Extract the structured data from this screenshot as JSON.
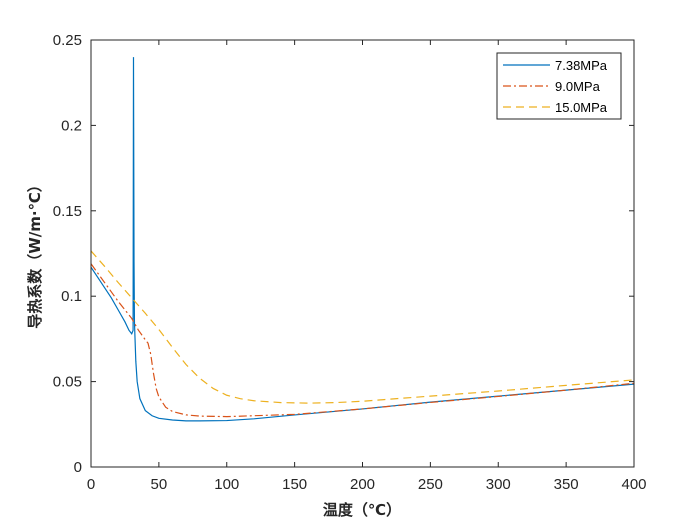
{
  "chart_data": {
    "type": "line",
    "xlabel": "温度（℃）",
    "ylabel": "导热系数（W/m·℃）",
    "xlim": [
      0,
      400
    ],
    "ylim": [
      0,
      0.25
    ],
    "xticks": [
      "0",
      "50",
      "100",
      "150",
      "200",
      "250",
      "300",
      "350",
      "400"
    ],
    "yticks": [
      "0",
      "0.05",
      "0.1",
      "0.15",
      "0.2",
      "0.25"
    ],
    "grid": false,
    "legend_position": "top-right",
    "series": [
      {
        "name": "7.38MPa",
        "color": "#0072BD",
        "dash": "solid",
        "points": [
          [
            0,
            0.117
          ],
          [
            5,
            0.111
          ],
          [
            10,
            0.105
          ],
          [
            15,
            0.099
          ],
          [
            20,
            0.092
          ],
          [
            25,
            0.085
          ],
          [
            28,
            0.08
          ],
          [
            30,
            0.078
          ],
          [
            31,
            0.08
          ],
          [
            31.3,
            0.24
          ],
          [
            31.7,
            0.12
          ],
          [
            32,
            0.085
          ],
          [
            33,
            0.062
          ],
          [
            34,
            0.05
          ],
          [
            36,
            0.04
          ],
          [
            40,
            0.033
          ],
          [
            45,
            0.03
          ],
          [
            50,
            0.0285
          ],
          [
            60,
            0.0275
          ],
          [
            70,
            0.027
          ],
          [
            80,
            0.027
          ],
          [
            100,
            0.0272
          ],
          [
            120,
            0.0282
          ],
          [
            150,
            0.0305
          ],
          [
            200,
            0.034
          ],
          [
            250,
            0.038
          ],
          [
            300,
            0.0415
          ],
          [
            350,
            0.045
          ],
          [
            400,
            0.0485
          ]
        ]
      },
      {
        "name": "9.0MPa",
        "color": "#D95319",
        "dash": "dashdot",
        "points": [
          [
            0,
            0.119
          ],
          [
            10,
            0.108
          ],
          [
            20,
            0.097
          ],
          [
            30,
            0.087
          ],
          [
            35,
            0.08
          ],
          [
            40,
            0.0745
          ],
          [
            42,
            0.0725
          ],
          [
            44,
            0.066
          ],
          [
            46,
            0.055
          ],
          [
            48,
            0.046
          ],
          [
            50,
            0.041
          ],
          [
            55,
            0.035
          ],
          [
            60,
            0.0325
          ],
          [
            70,
            0.0305
          ],
          [
            80,
            0.0298
          ],
          [
            100,
            0.0295
          ],
          [
            150,
            0.0308
          ],
          [
            200,
            0.034
          ],
          [
            250,
            0.0378
          ],
          [
            300,
            0.0413
          ],
          [
            350,
            0.045
          ],
          [
            400,
            0.049
          ]
        ]
      },
      {
        "name": "15.0MPa",
        "color": "#EDB120",
        "dash": "dashed",
        "points": [
          [
            0,
            0.1265
          ],
          [
            10,
            0.1175
          ],
          [
            20,
            0.108
          ],
          [
            30,
            0.099
          ],
          [
            40,
            0.09
          ],
          [
            50,
            0.0805
          ],
          [
            60,
            0.07
          ],
          [
            70,
            0.06
          ],
          [
            80,
            0.052
          ],
          [
            90,
            0.046
          ],
          [
            100,
            0.042
          ],
          [
            110,
            0.04
          ],
          [
            120,
            0.0388
          ],
          [
            140,
            0.0377
          ],
          [
            160,
            0.0374
          ],
          [
            180,
            0.0377
          ],
          [
            200,
            0.0385
          ],
          [
            250,
            0.0415
          ],
          [
            300,
            0.0445
          ],
          [
            350,
            0.0478
          ],
          [
            400,
            0.051
          ]
        ]
      }
    ]
  }
}
